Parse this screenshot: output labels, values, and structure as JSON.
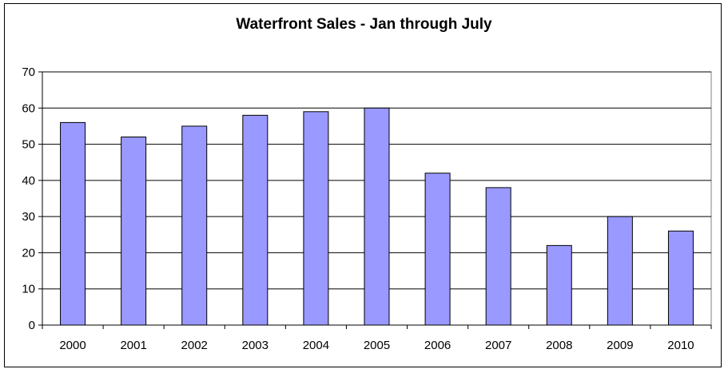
{
  "chart_data": {
    "type": "bar",
    "title": "Waterfront Sales - Jan through July",
    "categories": [
      "2000",
      "2001",
      "2002",
      "2003",
      "2004",
      "2005",
      "2006",
      "2007",
      "2008",
      "2009",
      "2010"
    ],
    "values": [
      56,
      52,
      55,
      58,
      59,
      60,
      42,
      38,
      22,
      30,
      26
    ],
    "xlabel": "",
    "ylabel": "",
    "ylim": [
      0,
      70
    ],
    "yticks": [
      "0",
      "10",
      "20",
      "30",
      "40",
      "50",
      "60",
      "70"
    ],
    "grid": true,
    "legend": "none",
    "bar_color": "#9999ff",
    "bar_edge_color": "#000000"
  }
}
